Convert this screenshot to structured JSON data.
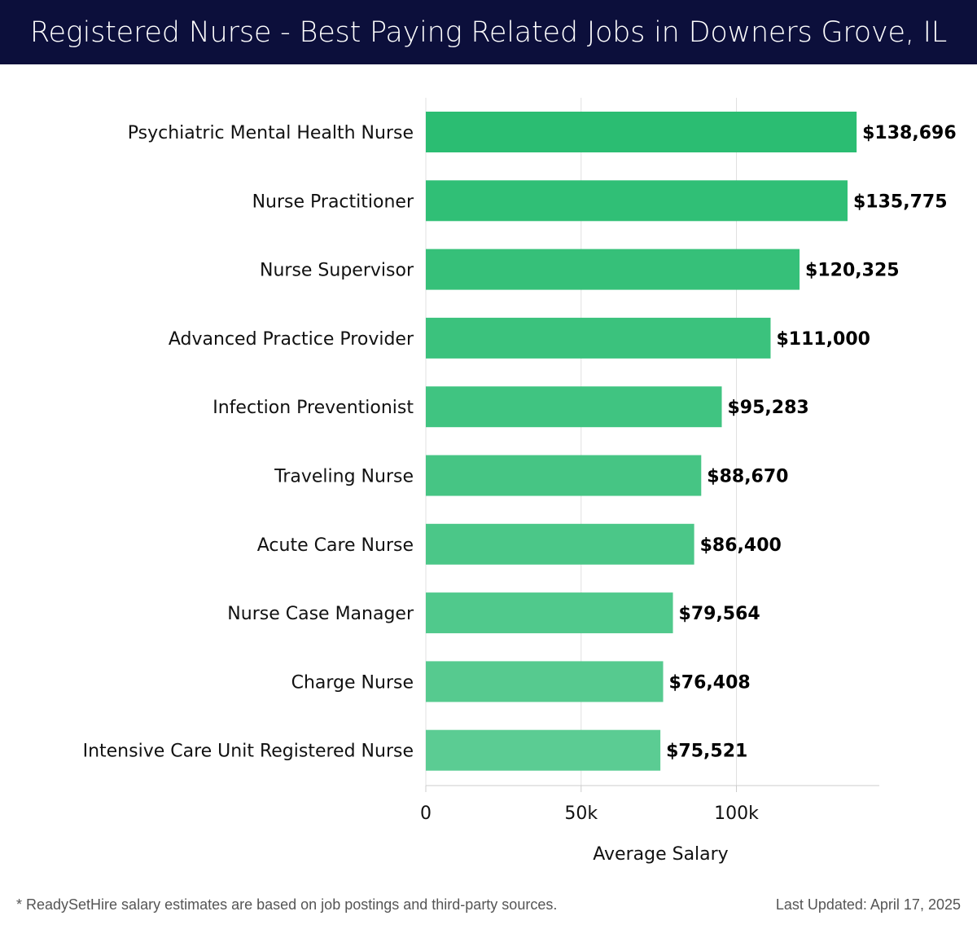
{
  "title": "Registered Nurse - Best Paying Related Jobs in Downers Grove, IL",
  "footnote": "* ReadySetHire salary estimates are based on job postings and third-party sources.",
  "last_updated": "Last Updated: April 17, 2025",
  "colors": {
    "header_bg": "#0c0f3b",
    "bar_top": "#2bbd72",
    "bar_bottom": "#5bcc93",
    "grid": "#e0e0e0",
    "axis": "#cccccc"
  },
  "chart_data": {
    "type": "bar",
    "orientation": "horizontal",
    "title": "Registered Nurse - Best Paying Related Jobs in Downers Grove, IL",
    "xlabel": "Average Salary",
    "ylabel": "",
    "xlim": [
      0,
      146000
    ],
    "xticks": [
      0,
      50000,
      100000
    ],
    "xtick_labels": [
      "0",
      "50k",
      "100k"
    ],
    "grid": true,
    "categories": [
      "Psychiatric Mental Health Nurse",
      "Nurse Practitioner",
      "Nurse Supervisor",
      "Advanced Practice Provider",
      "Infection Preventionist",
      "Traveling Nurse",
      "Acute Care Nurse",
      "Nurse Case Manager",
      "Charge Nurse",
      "Intensive Care Unit Registered Nurse"
    ],
    "values": [
      138696,
      135775,
      120325,
      111000,
      95283,
      88670,
      86400,
      79564,
      76408,
      75521
    ],
    "value_labels": [
      "$138,696",
      "$135,775",
      "$120,325",
      "$111,000",
      "$95,283",
      "$88,670",
      "$86,400",
      "$79,564",
      "$76,408",
      "$75,521"
    ]
  }
}
